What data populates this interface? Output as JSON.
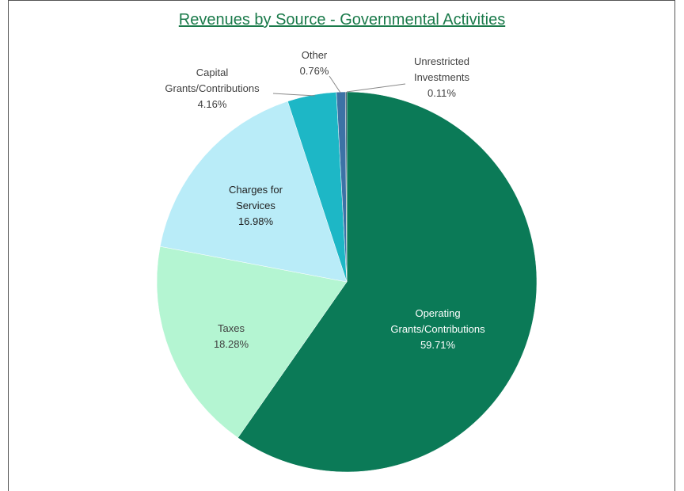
{
  "chart_data": {
    "type": "pie",
    "title": "Revenues by Source - Governmental Activities",
    "categories": [
      "Operating Grants/Contributions",
      "Taxes",
      "Charges for Services",
      "Capital Grants/Contributions",
      "Other",
      "Unrestricted Investments"
    ],
    "values": [
      59.71,
      18.28,
      16.98,
      4.16,
      0.76,
      0.11
    ],
    "value_labels": [
      "59.71%",
      "18.28%",
      "16.98%",
      "4.16%",
      "0.76%",
      "0.11%"
    ],
    "colors": [
      "#0b7a57",
      "#b4f5d2",
      "#b9ecf8",
      "#1db7c6",
      "#3c72a6",
      "#1b3a5c"
    ]
  }
}
